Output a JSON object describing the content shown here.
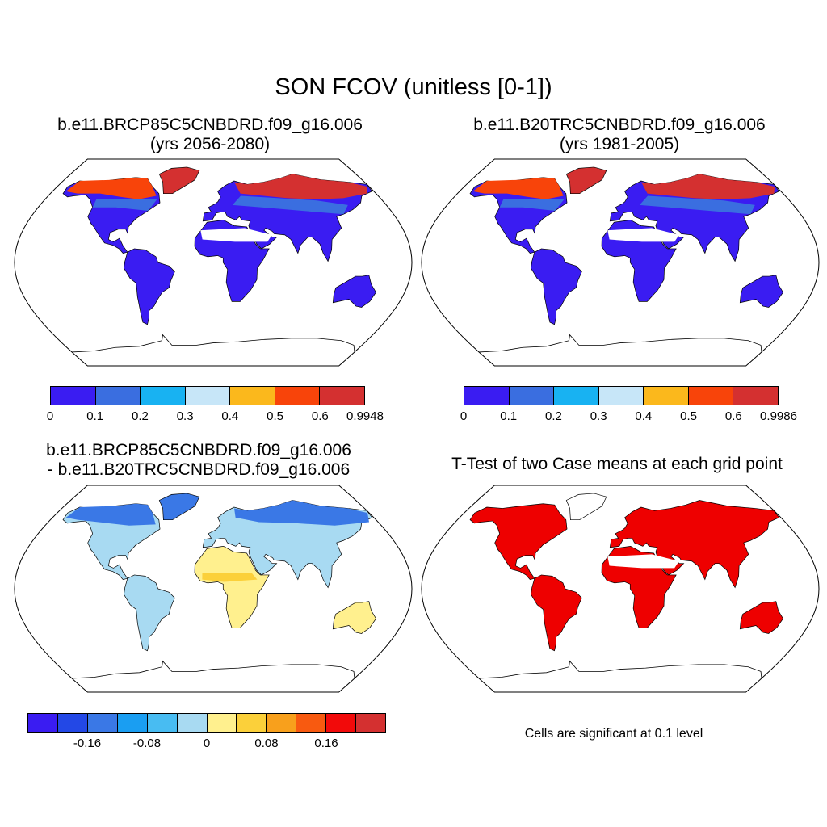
{
  "main_title": "SON FCOV (unitless [0-1])",
  "panels": [
    {
      "title_line1": "b.e11.BRCP85C5CNBDRD.f09_g16.006",
      "title_line2": "(yrs 2056-2080)",
      "colorbar": {
        "colors": [
          "#3a1cf2",
          "#3a6ee0",
          "#18b2f2",
          "#c7e6f8",
          "#fbb81c",
          "#f8440a",
          "#d43030"
        ],
        "tick_labels": [
          "0",
          "0.1",
          "0.2",
          "0.3",
          "0.4",
          "0.5",
          "0.6",
          "0.9948"
        ]
      }
    },
    {
      "title_line1": "b.e11.B20TRC5CNBDRD.f09_g16.006",
      "title_line2": "(yrs 1981-2005)",
      "colorbar": {
        "colors": [
          "#3a1cf2",
          "#3a6ee0",
          "#18b2f2",
          "#c7e6f8",
          "#fbb81c",
          "#f8440a",
          "#d43030"
        ],
        "tick_labels": [
          "0",
          "0.1",
          "0.2",
          "0.3",
          "0.4",
          "0.5",
          "0.6",
          "0.9986"
        ]
      }
    },
    {
      "title_line1": "b.e11.BRCP85C5CNBDRD.f09_g16.006",
      "title_line2": "- b.e11.B20TRC5CNBDRD.f09_g16.006",
      "colorbar": {
        "colors": [
          "#3a1cf2",
          "#2348e6",
          "#3a78e6",
          "#1a9ef2",
          "#48bcf2",
          "#a8daf2",
          "#fff08e",
          "#fbd03a",
          "#f8a01c",
          "#f85a10",
          "#f20a0a",
          "#d43030"
        ],
        "tick_labels": [
          "-0.16",
          "-0.08",
          "0",
          "0.08",
          "0.16"
        ]
      }
    },
    {
      "title_line1": "T-Test of two Case means at each grid point",
      "note": "Cells are significant at 0.1 level",
      "fill_color": "#ee0000"
    }
  ]
}
